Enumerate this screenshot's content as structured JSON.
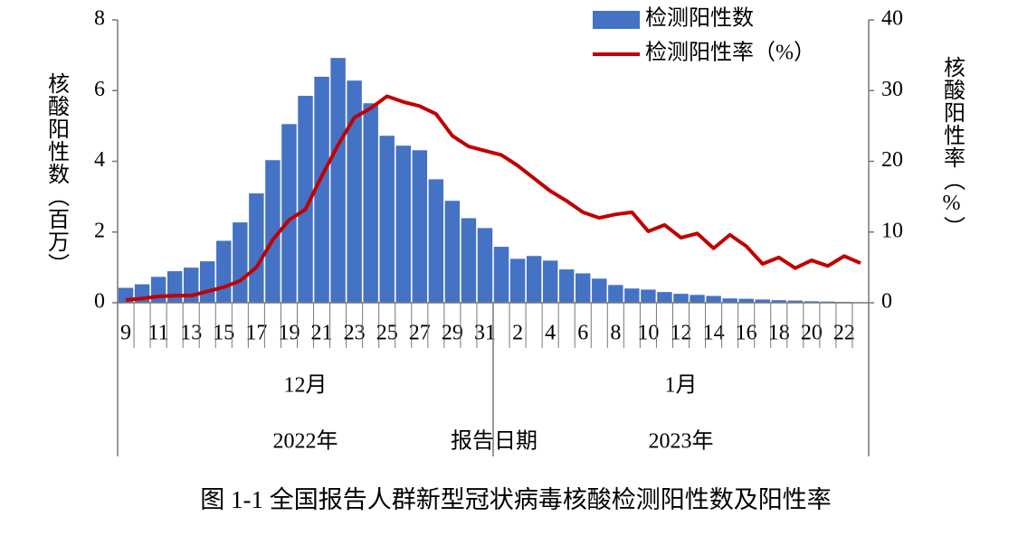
{
  "chart_data": {
    "type": "bar_line",
    "title": "图 1-1  全国报告人群新型冠状病毒核酸检测阳性数及阳性率",
    "xlabel": "报告日期",
    "ylabel": "核酸阳性数（百万）",
    "y2label": "核酸阳性率（%）",
    "month_labels": [
      "12月",
      "1月"
    ],
    "year_labels": [
      "2022年",
      "2023年"
    ],
    "categories": [
      "9",
      null,
      "11",
      null,
      "13",
      null,
      "15",
      null,
      "17",
      null,
      "19",
      null,
      "21",
      null,
      "23",
      null,
      "25",
      null,
      "27",
      null,
      "29",
      null,
      "31",
      null,
      "2",
      null,
      "4",
      null,
      "6",
      null,
      "8",
      null,
      "10",
      null,
      "12",
      null,
      "14",
      null,
      "16",
      null,
      "18",
      null,
      "20",
      null,
      "22",
      null
    ],
    "series": [
      {
        "name": "检测阳性数",
        "type": "bar",
        "color": "#4472c4",
        "values": [
          0.43,
          0.53,
          0.74,
          0.9,
          1.0,
          1.18,
          1.76,
          2.28,
          3.1,
          4.04,
          5.06,
          5.86,
          6.4,
          6.93,
          6.29,
          5.65,
          4.73,
          4.45,
          4.32,
          3.5,
          2.89,
          2.4,
          2.12,
          1.59,
          1.25,
          1.33,
          1.2,
          0.95,
          0.84,
          0.69,
          0.51,
          0.41,
          0.38,
          0.31,
          0.26,
          0.23,
          0.2,
          0.13,
          0.12,
          0.1,
          0.08,
          0.07,
          0.05,
          0.04,
          0.03,
          0.02
        ]
      },
      {
        "name": "检测阳性率（%）",
        "type": "line",
        "axis": "y2",
        "color": "#c00000",
        "values": [
          0.4,
          0.6,
          0.9,
          1.0,
          1.0,
          1.6,
          2.2,
          3.1,
          5.0,
          8.9,
          11.7,
          13.2,
          17.9,
          22.3,
          26.2,
          27.5,
          29.2,
          28.4,
          27.8,
          26.7,
          23.6,
          22.1,
          21.5,
          20.9,
          19.4,
          17.6,
          15.8,
          14.4,
          12.8,
          12.0,
          12.5,
          12.8,
          10.1,
          11.0,
          9.2,
          9.8,
          7.7,
          9.6,
          8.0,
          5.5,
          6.4,
          4.9,
          6.0,
          5.2,
          6.6,
          5.6
        ]
      }
    ],
    "ylim": [
      0,
      8
    ],
    "yticks": [
      0,
      2,
      4,
      6,
      8
    ],
    "y2lim": [
      0,
      40
    ],
    "y2ticks": [
      0,
      10,
      20,
      30,
      40
    ],
    "legend": "top-right"
  }
}
